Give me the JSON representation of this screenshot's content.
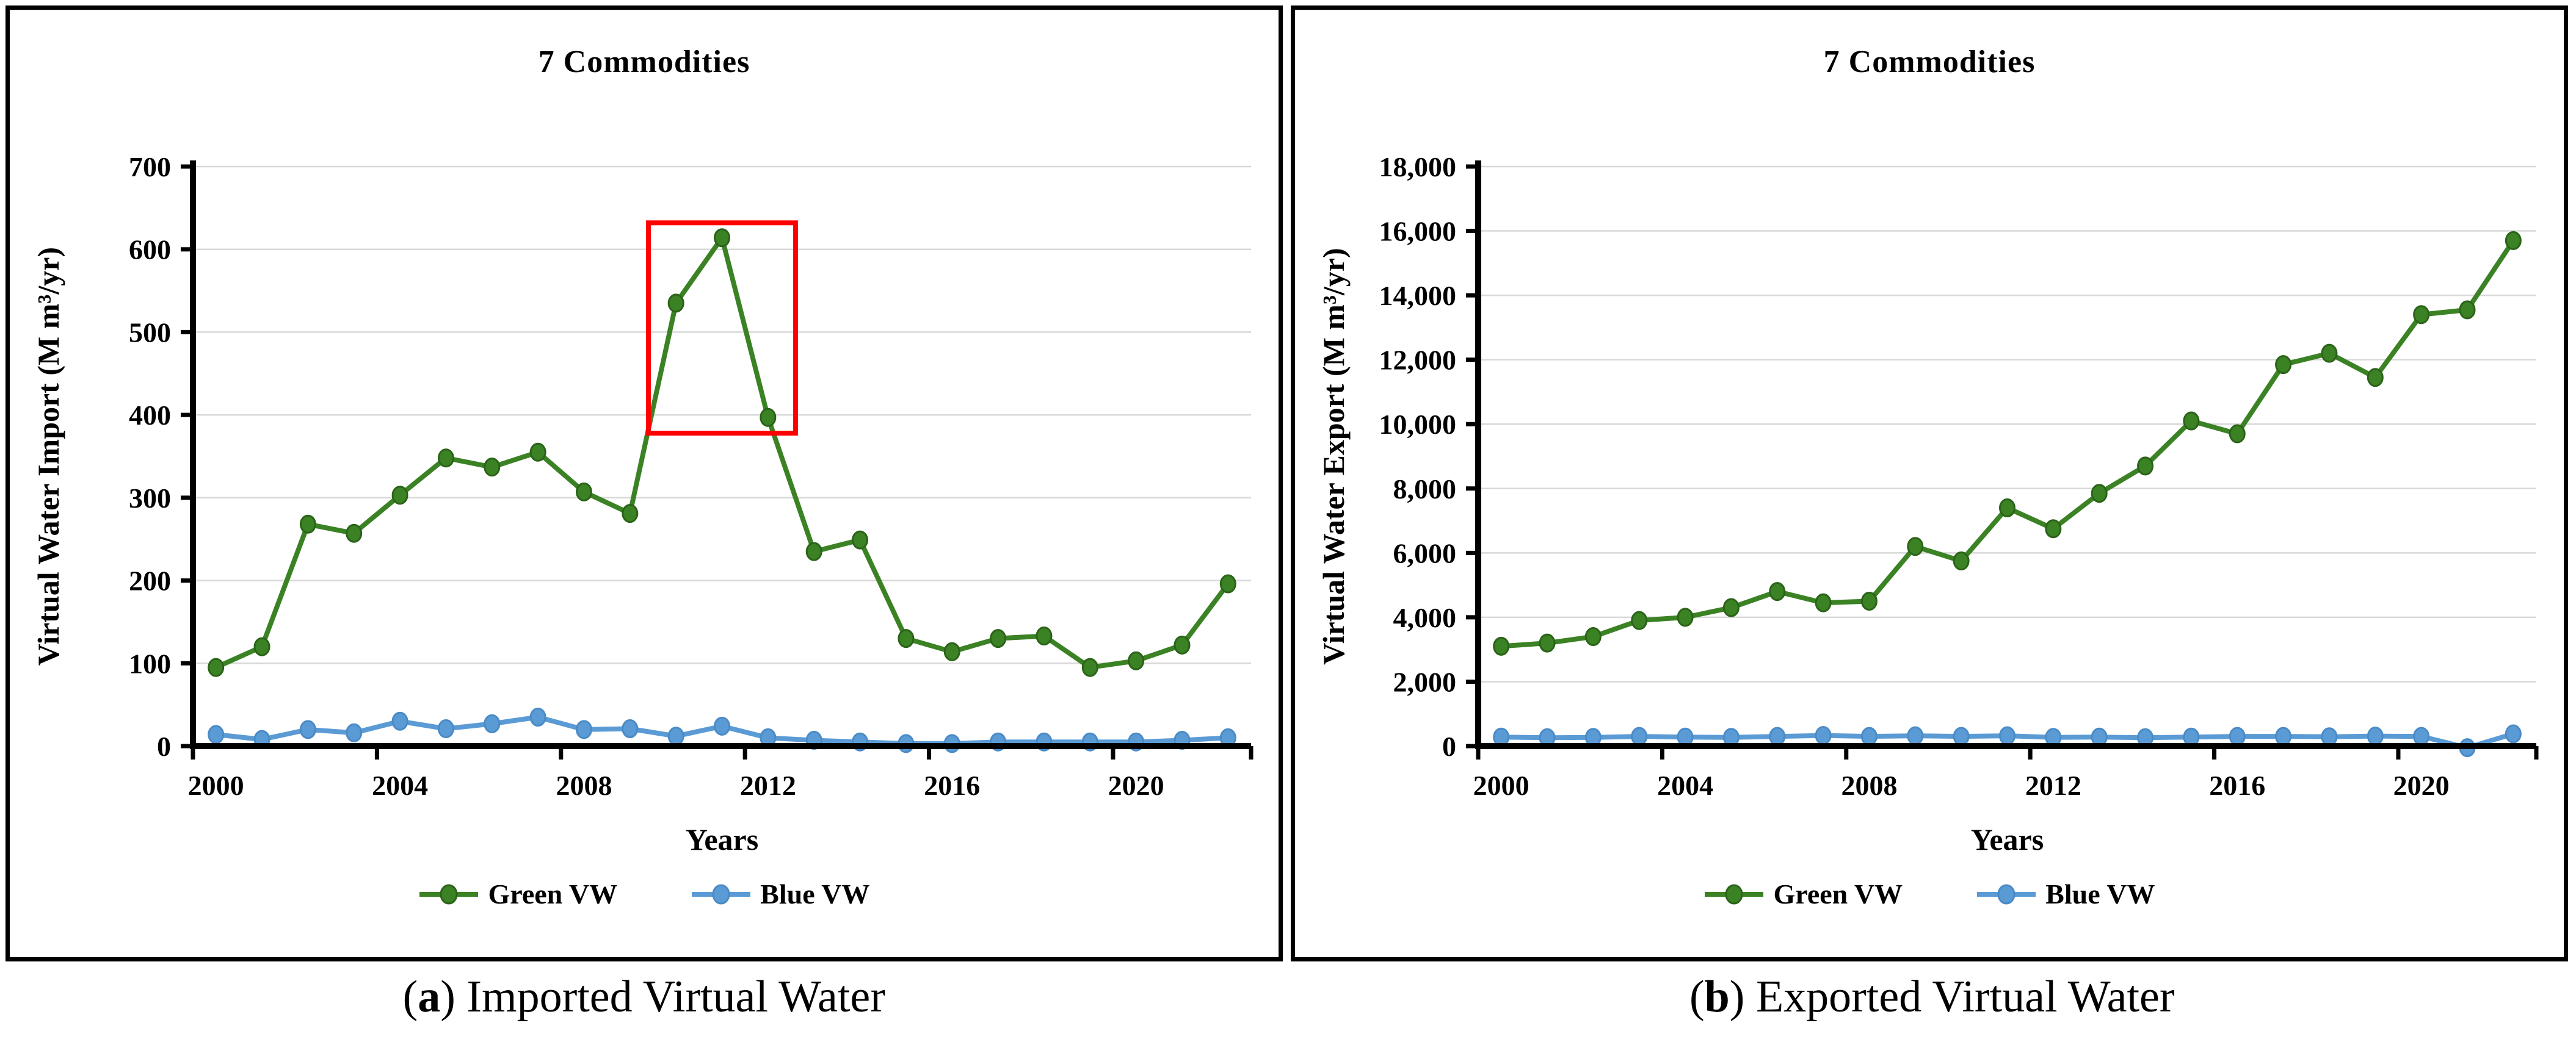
{
  "captions": [
    {
      "open": "(",
      "letter": "a",
      "close": ")",
      "text": " Imported Virtual Water"
    },
    {
      "open": "(",
      "letter": "b",
      "close": ")",
      "text": " Exported Virtual Water"
    }
  ],
  "chart_data": [
    {
      "type": "line",
      "title": "7 Commodities",
      "xlabel": "Years",
      "ylabel": "Virtual Water Import (M m³/yr)",
      "x": [
        2000,
        2001,
        2002,
        2003,
        2004,
        2005,
        2006,
        2007,
        2008,
        2009,
        2010,
        2011,
        2012,
        2013,
        2014,
        2015,
        2016,
        2017,
        2018,
        2019,
        2020,
        2021,
        2022
      ],
      "xticks": [
        2000,
        2004,
        2008,
        2012,
        2016,
        2020
      ],
      "xtick_labels": [
        "2000",
        "2004",
        "2008",
        "2012",
        "2016",
        "2020"
      ],
      "ylim": [
        0,
        700
      ],
      "yticks": [
        0,
        100,
        200,
        300,
        400,
        500,
        600,
        700
      ],
      "ytick_labels": [
        "0",
        "100",
        "200",
        "300",
        "400",
        "500",
        "600",
        "700"
      ],
      "grid": true,
      "legend_position": "bottom",
      "series": [
        {
          "name": "Green VW",
          "color": "#3B8225",
          "marker_stroke": "#2B6318",
          "values": [
            95,
            120,
            268,
            257,
            303,
            348,
            337,
            355,
            307,
            281,
            535,
            614,
            397,
            235,
            249,
            130,
            114,
            130,
            133,
            95,
            103,
            122,
            196
          ]
        },
        {
          "name": "Blue VW",
          "color": "#5B9BD5",
          "marker_stroke": "#4A8BC6",
          "values": [
            14,
            8,
            20,
            16,
            30,
            21,
            27,
            35,
            20,
            21,
            12,
            24,
            10,
            7,
            5,
            3,
            3,
            5,
            5,
            5,
            5,
            7,
            10
          ]
        }
      ],
      "annotation_rect": {
        "x0": 2009.4,
        "x1": 2012.6,
        "y0": 378,
        "y1": 632,
        "color": "#FF0000"
      }
    },
    {
      "type": "line",
      "title": "7 Commodities",
      "xlabel": "Years",
      "ylabel": "Virtual Water Export (M m³/yr)",
      "x": [
        2000,
        2001,
        2002,
        2003,
        2004,
        2005,
        2006,
        2007,
        2008,
        2009,
        2010,
        2011,
        2012,
        2013,
        2014,
        2015,
        2016,
        2017,
        2018,
        2019,
        2020,
        2021,
        2022
      ],
      "xticks": [
        2000,
        2004,
        2008,
        2012,
        2016,
        2020
      ],
      "xtick_labels": [
        "2000",
        "2004",
        "2008",
        "2012",
        "2016",
        "2020"
      ],
      "ylim": [
        0,
        18000
      ],
      "yticks": [
        0,
        2000,
        4000,
        6000,
        8000,
        10000,
        12000,
        14000,
        16000,
        18000
      ],
      "ytick_labels": [
        "0",
        "2,000",
        "4,000",
        "6,000",
        "8,000",
        "10,000",
        "12,000",
        "14,000",
        "16,000",
        "18,000"
      ],
      "grid": true,
      "legend_position": "bottom",
      "series": [
        {
          "name": "Green VW",
          "color": "#3B8225",
          "marker_stroke": "#2B6318",
          "values": [
            3100,
            3200,
            3400,
            3900,
            4000,
            4300,
            4800,
            4450,
            4500,
            6200,
            5750,
            7400,
            6750,
            7850,
            8700,
            10100,
            9700,
            11850,
            12200,
            11450,
            13400,
            13550,
            15700
          ]
        },
        {
          "name": "Blue VW",
          "color": "#5B9BD5",
          "marker_stroke": "#4A8BC6",
          "values": [
            280,
            260,
            270,
            300,
            280,
            270,
            300,
            330,
            300,
            320,
            300,
            320,
            270,
            280,
            260,
            280,
            300,
            300,
            290,
            310,
            300,
            -50,
            380
          ]
        }
      ]
    }
  ]
}
